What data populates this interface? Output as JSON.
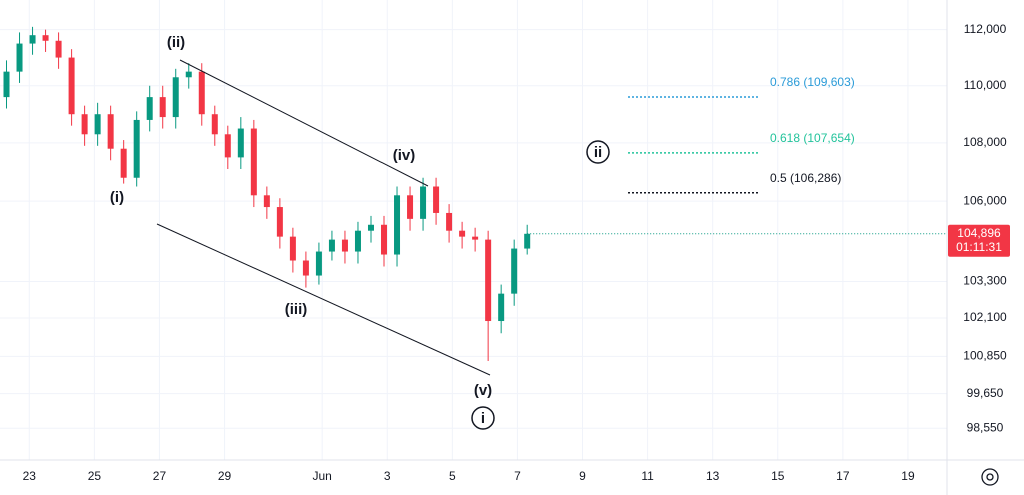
{
  "chart_data": {
    "type": "candlestick",
    "log_scale": true,
    "grid": true,
    "up_color": "#089981",
    "down_color": "#f23645",
    "x": [
      -0.7,
      -0.3,
      0.1,
      0.5,
      0.9,
      1.3,
      1.7,
      2.1,
      2.5,
      2.9,
      3.3,
      3.7,
      4.1,
      4.5,
      4.9,
      5.3,
      5.7,
      6.1,
      6.5,
      6.9,
      7.3,
      7.7,
      8.1,
      8.5,
      8.9,
      9.3,
      9.7,
      10.1,
      10.5,
      10.9,
      11.3,
      11.7,
      12.1,
      12.5,
      12.9,
      13.3,
      13.7,
      14.1,
      14.5,
      14.9,
      15.3
    ],
    "open": [
      109600,
      110500,
      111500,
      111800,
      111600,
      111000,
      109000,
      108300,
      109000,
      107800,
      106800,
      108800,
      109600,
      108900,
      110300,
      110500,
      109000,
      108300,
      107500,
      108500,
      106200,
      105800,
      104800,
      104000,
      103500,
      104300,
      104700,
      104300,
      105000,
      105200,
      104200,
      106200,
      105400,
      106500,
      105600,
      105000,
      104800,
      104700,
      102000,
      102900,
      104400
    ],
    "high": [
      110900,
      111900,
      112100,
      112000,
      111900,
      111300,
      109300,
      109400,
      109300,
      108100,
      109100,
      110000,
      110000,
      110600,
      110800,
      110800,
      109300,
      108600,
      108900,
      108800,
      106500,
      106100,
      105100,
      104300,
      104600,
      105000,
      105000,
      105300,
      105500,
      105500,
      106500,
      106500,
      106800,
      106800,
      105900,
      105300,
      105100,
      105000,
      103200,
      104700,
      105200
    ],
    "low": [
      109200,
      110100,
      111100,
      111200,
      110600,
      108600,
      107900,
      107900,
      107400,
      106600,
      106500,
      108400,
      108500,
      108500,
      109900,
      108600,
      107900,
      107100,
      107100,
      105800,
      105400,
      104400,
      103600,
      103100,
      103200,
      104000,
      103900,
      103900,
      104600,
      103800,
      103800,
      105000,
      105000,
      105200,
      104600,
      104400,
      104300,
      100700,
      101600,
      102500,
      104200
    ],
    "close": [
      110500,
      111500,
      111800,
      111600,
      111000,
      109000,
      108300,
      109000,
      107800,
      106800,
      108800,
      109600,
      108900,
      110300,
      110500,
      109000,
      108300,
      107500,
      108500,
      106200,
      105800,
      104800,
      104000,
      103500,
      104300,
      104700,
      104300,
      105000,
      105200,
      104200,
      106200,
      105400,
      106500,
      105600,
      105000,
      104800,
      104700,
      102000,
      102900,
      104400,
      104896
    ],
    "xlim": [
      -0.9,
      28.2
    ],
    "xticks": [
      {
        "value": 0,
        "label": "23"
      },
      {
        "value": 2,
        "label": "25"
      },
      {
        "value": 4,
        "label": "27"
      },
      {
        "value": 6,
        "label": "29"
      },
      {
        "value": 9,
        "label": "Jun"
      },
      {
        "value": 11,
        "label": "3"
      },
      {
        "value": 13,
        "label": "5"
      },
      {
        "value": 15,
        "label": "7"
      },
      {
        "value": 17,
        "label": "9"
      },
      {
        "value": 19,
        "label": "11"
      },
      {
        "value": 21,
        "label": "13"
      },
      {
        "value": 23,
        "label": "15"
      },
      {
        "value": 25,
        "label": "17"
      },
      {
        "value": 27,
        "label": "19"
      }
    ],
    "ylim": [
      97550,
      113070
    ],
    "yticks": [
      {
        "value": 112000,
        "label": "112,000"
      },
      {
        "value": 110000,
        "label": "110,000"
      },
      {
        "value": 108000,
        "label": "108,000"
      },
      {
        "value": 106000,
        "label": "106,000"
      },
      {
        "value": 103300,
        "label": "103,300"
      },
      {
        "value": 102100,
        "label": "102,100"
      },
      {
        "value": 100850,
        "label": "100,850"
      },
      {
        "value": 99650,
        "label": "99,650"
      },
      {
        "value": 98550,
        "label": "98,550"
      }
    ],
    "last_price": {
      "value": 104896,
      "label": "104,896"
    },
    "countdown": "01:11:31",
    "fib_levels": [
      {
        "price": 109603,
        "label": "0.786 (109,603)",
        "color": "#2a9bd8"
      },
      {
        "price": 107654,
        "label": "0.618 (107,654)",
        "color": "#22c39b"
      },
      {
        "price": 106286,
        "label": "0.5 (106,286)",
        "color": "#131722"
      }
    ],
    "wave_labels": [
      "(ii)",
      "(i)",
      "(iii)",
      "(iv)",
      "(v)",
      "i",
      "ii"
    ]
  }
}
